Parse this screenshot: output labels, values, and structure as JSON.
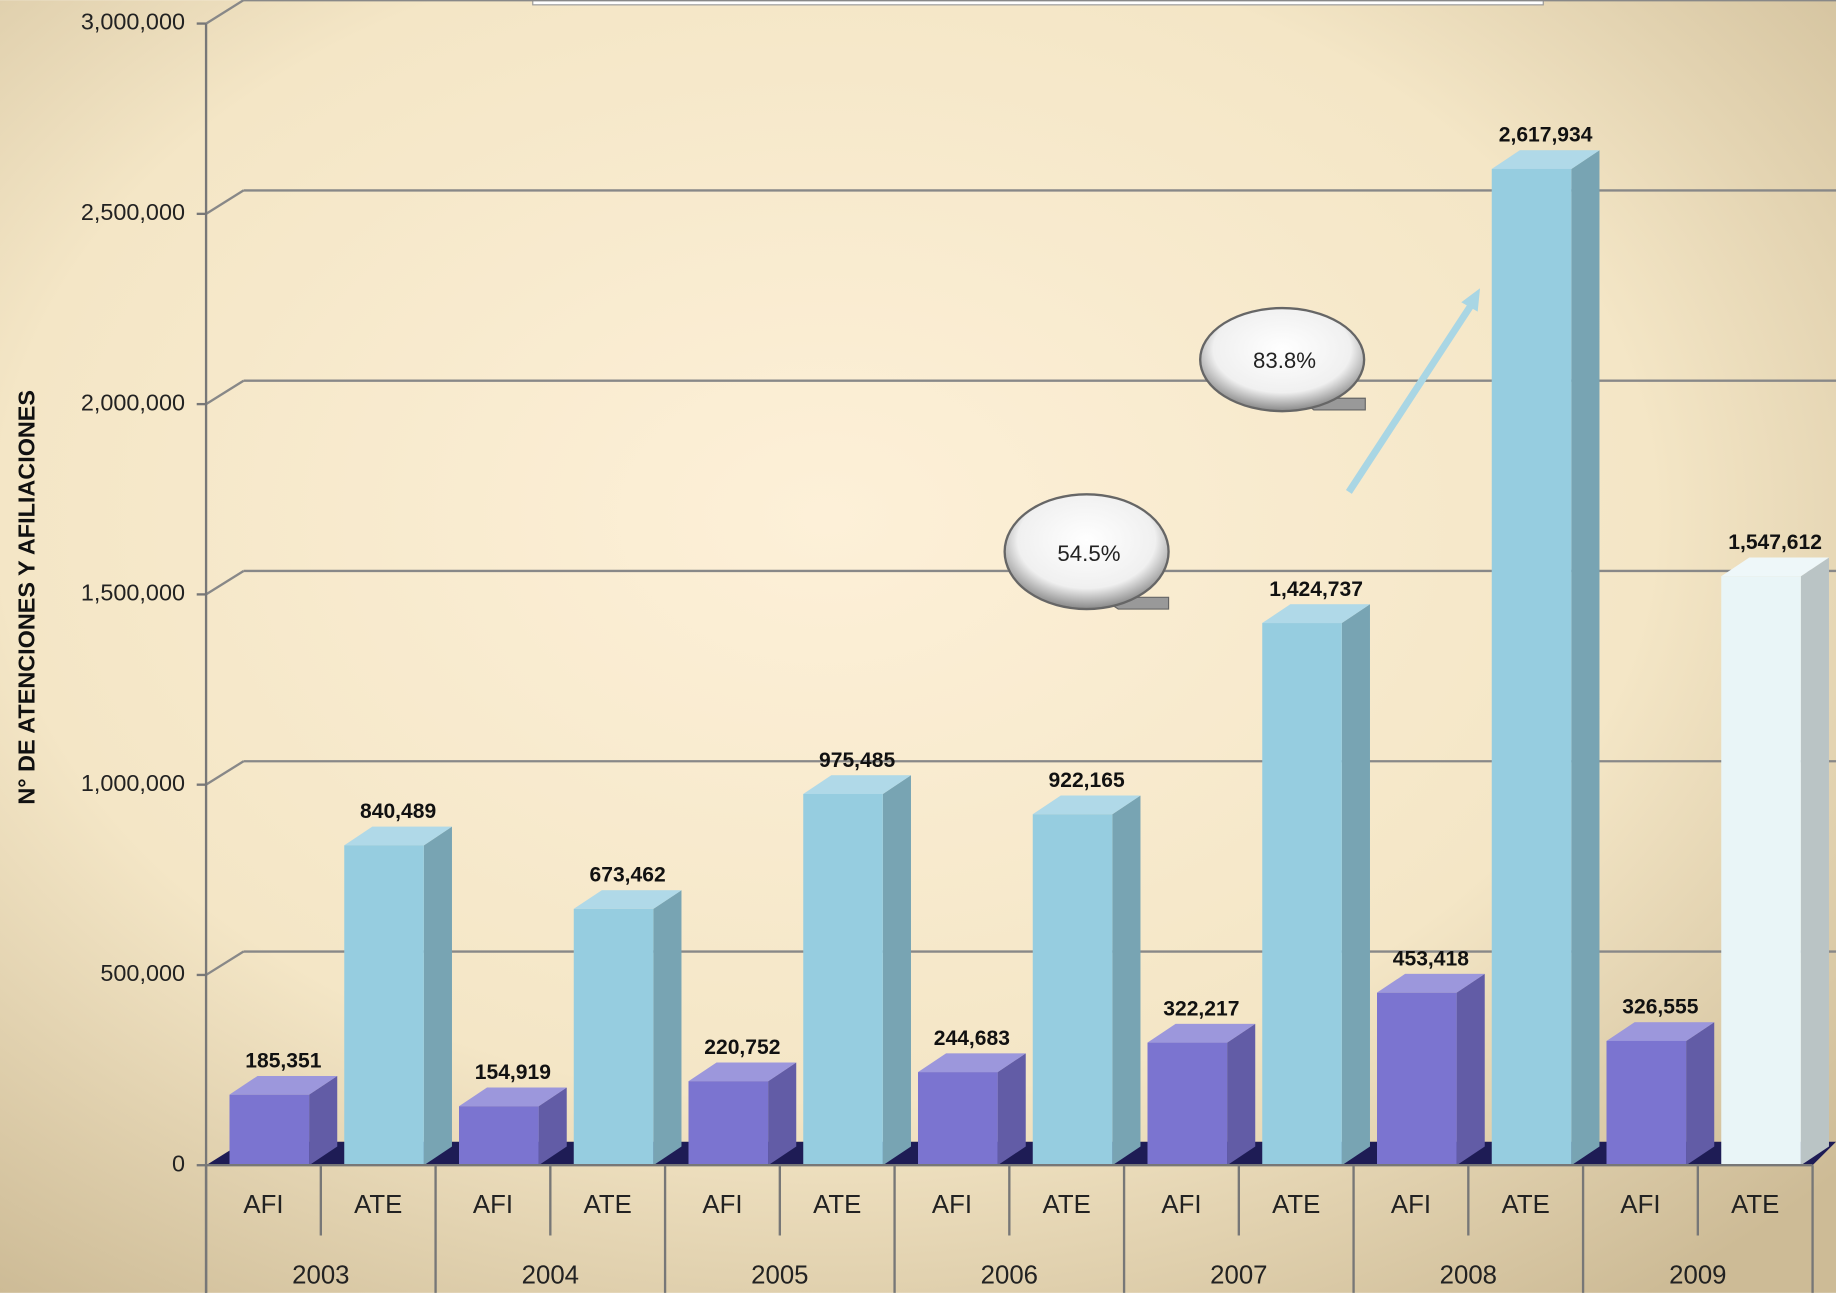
{
  "chart_data": {
    "type": "bar3d",
    "y_axis_label": "N° DE ATENCIONES Y AFILIACIONES",
    "categories": [
      "AFI",
      "ATE",
      "AFI",
      "ATE",
      "AFI",
      "ATE",
      "AFI",
      "ATE",
      "AFI",
      "ATE",
      "AFI",
      "ATE",
      "AFI",
      "ATE"
    ],
    "groups": [
      "2003",
      "2004",
      "2005",
      "2006",
      "2007",
      "2008",
      "2009"
    ],
    "values": [
      185351,
      840489,
      154919,
      673462,
      220752,
      975485,
      244683,
      922165,
      322217,
      1424737,
      453418,
      2617934,
      326555,
      1547612
    ],
    "value_labels": [
      "185,351",
      "840,489",
      "154,919",
      "673,462",
      "220,752",
      "975,485",
      "244,683",
      "922,165",
      "322,217",
      "1,424,737",
      "453,418",
      "2,617,934",
      "326,555",
      "1,547,612"
    ],
    "colors": [
      "#7b74d0",
      "#96cde0",
      "#7b74d0",
      "#96cde0",
      "#7b74d0",
      "#96cde0",
      "#7b74d0",
      "#96cde0",
      "#7b74d0",
      "#96cde0",
      "#7b74d0",
      "#96cde0",
      "#7b74d0",
      "#e9f5f7"
    ],
    "ylim": [
      0,
      3000000
    ],
    "yticks": [
      0,
      {
        "value": 500000,
        "label": "500,000"
      },
      {
        "value": 1000000,
        "label": "1,000,000"
      },
      {
        "value": 1500000,
        "label": "1,500,000"
      },
      {
        "value": 2000000,
        "label": "2,000,000"
      },
      {
        "value": 2500000,
        "label": "2,500,000"
      },
      {
        "value": 3000000,
        "label": "3,000,000"
      }
    ],
    "grid": true,
    "annotations": [
      "54.5%",
      "83.8%"
    ]
  }
}
